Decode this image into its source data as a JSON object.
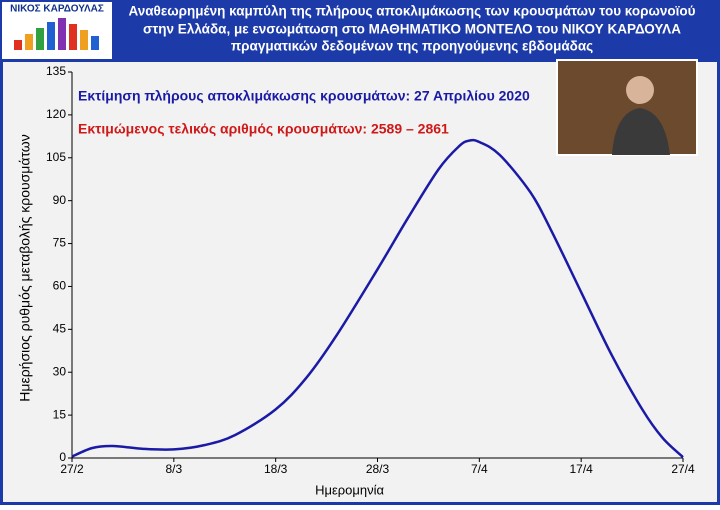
{
  "chart_data": {
    "type": "line",
    "brand": "ΝΙΚΟΣ ΚΑΡΔΟΥΛΑΣ",
    "title": [
      "Αναθεωρημένη καμπύλη της πλήρους αποκλιμάκωσης των κρουσμάτων του κορωνοϊού",
      "στην Ελλάδα, με ενσωμάτωση στο ΜΑΘΗΜΑΤΙΚΟ ΜΟΝΤΕΛΟ του ΝΙΚΟΥ ΚΑΡΔΟΥΛΑ",
      "πραγματικών δεδομένων της προηγούμενης εβδομάδας"
    ],
    "annotations": [
      "Εκτίμηση πλήρους αποκλιμάκωσης κρουσμάτων: 27 Απριλίου 2020",
      "Εκτιμώμενος τελικός αριθμός κρουσμάτων: 2589 – 2861"
    ],
    "x_label": "Ημερομηνία",
    "y_label": "Ημερήσιος ρυθμός μεταβολής κρουσμάτων",
    "x": [
      "27/2",
      "29/2",
      "2/3",
      "5/3",
      "8/3",
      "11/3",
      "14/3",
      "18/3",
      "21/3",
      "24/3",
      "28/3",
      "31/3",
      "3/4",
      "5/4",
      "6/4",
      "7/4",
      "9/4",
      "12/4",
      "14/4",
      "17/4",
      "20/4",
      "23/4",
      "25/4",
      "27/4"
    ],
    "values": [
      0.5,
      3.5,
      4.2,
      3.2,
      3,
      4.5,
      8,
      17,
      28,
      43,
      66,
      84,
      101,
      109,
      111,
      110.5,
      106,
      93,
      80,
      58,
      36,
      17,
      7,
      0.3
    ],
    "color": "#1a1aa6",
    "xticks": [
      "27/2",
      "8/3",
      "18/3",
      "28/3",
      "7/4",
      "17/4",
      "27/4"
    ],
    "ylim": [
      0,
      135
    ],
    "yticks": [
      0,
      15,
      30,
      45,
      60,
      75,
      90,
      105,
      120,
      135
    ]
  }
}
